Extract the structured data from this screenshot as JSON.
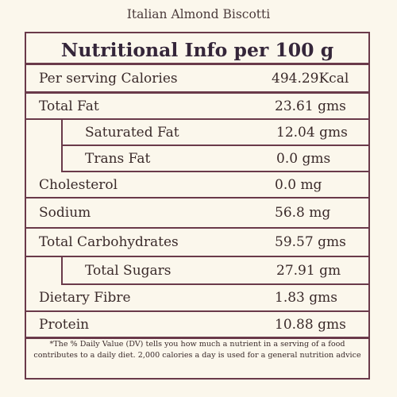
{
  "title": "Italian Almond Biscotti",
  "heading": "Nutritional Info per 100 g",
  "rows": [
    {
      "label": "Per serving Calories",
      "value": "494.29Kcal"
    },
    {
      "label": "Total Fat",
      "value": "23.61 gms"
    },
    {
      "label": "Saturated Fat",
      "value": "12.04 gms"
    },
    {
      "label": "Trans Fat",
      "value": "0.0 gms"
    },
    {
      "label": "Cholesterol",
      "value": "0.0 mg"
    },
    {
      "label": "Sodium",
      "value": "56.8 mg"
    },
    {
      "label": "Total Carbohydrates",
      "value": "59.57 gms"
    },
    {
      "label": "Total Sugars",
      "value": "27.91 gm"
    },
    {
      "label": "Dietary Fibre",
      "value": "1.83 gms"
    },
    {
      "label": "Protein",
      "value": "10.88 gms"
    }
  ],
  "footnote": {
    "line1": "*The % Daily Value (DV) tells you how much a nutrient in a serving of a food",
    "line2": "contributes to a daily diet. 2,000 calories a day is used for a general nutrition advice"
  },
  "colors": {
    "background": "#fbf7ec",
    "border": "#6a3a4a",
    "text": "#3a2a2a"
  }
}
